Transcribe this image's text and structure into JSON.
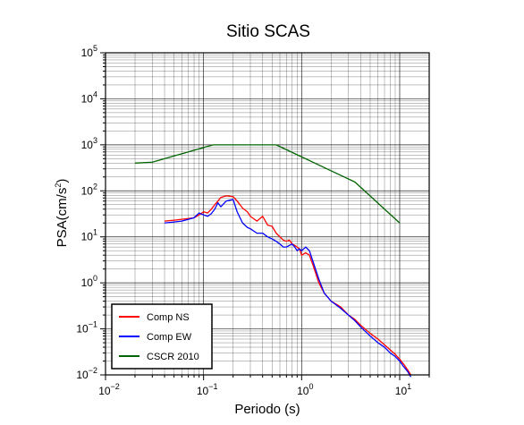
{
  "chart_data": {
    "type": "line",
    "title": "Sitio SCAS",
    "xlabel": "Periodo (s)",
    "ylabel_main": "PSA(cm/s",
    "ylabel_sup": "2",
    "ylabel_tail": ")",
    "xscale": "log",
    "yscale": "log",
    "xlim": [
      0.01,
      20
    ],
    "ylim": [
      0.01,
      100000
    ],
    "grid": true,
    "legend_position": "bottom-left",
    "x_ticks": [
      {
        "base": "10",
        "exp": "−2"
      },
      {
        "base": "10",
        "exp": "−1"
      },
      {
        "base": "10",
        "exp": "0"
      },
      {
        "base": "10",
        "exp": "1"
      }
    ],
    "y_ticks": [
      {
        "base": "10",
        "exp": "−2"
      },
      {
        "base": "10",
        "exp": "−1"
      },
      {
        "base": "10",
        "exp": "0"
      },
      {
        "base": "10",
        "exp": "1"
      },
      {
        "base": "10",
        "exp": "2"
      },
      {
        "base": "10",
        "exp": "3"
      },
      {
        "base": "10",
        "exp": "4"
      },
      {
        "base": "10",
        "exp": "5"
      }
    ],
    "series": [
      {
        "name": "Comp NS",
        "color": "#ff0000",
        "x": [
          0.04,
          0.05,
          0.06,
          0.07,
          0.08,
          0.09,
          0.1,
          0.11,
          0.12,
          0.13,
          0.14,
          0.15,
          0.17,
          0.2,
          0.22,
          0.25,
          0.28,
          0.3,
          0.35,
          0.4,
          0.45,
          0.5,
          0.55,
          0.6,
          0.65,
          0.7,
          0.75,
          0.8,
          0.85,
          0.9,
          0.95,
          1.0,
          1.1,
          1.2,
          1.3,
          1.5,
          1.7,
          2.0,
          2.5,
          3.0,
          3.5,
          4.0,
          5.0,
          6.0,
          7.0,
          8.0,
          9.0,
          10.0,
          11.0,
          12.0,
          13.0
        ],
        "y": [
          22,
          23,
          24,
          25,
          26,
          30,
          35,
          33,
          40,
          50,
          60,
          72,
          78,
          75,
          60,
          42,
          35,
          28,
          22,
          28,
          18,
          17,
          12,
          10,
          8.5,
          8,
          8.5,
          7,
          6.5,
          6,
          5.5,
          4,
          4.5,
          4,
          2.5,
          1,
          0.6,
          0.4,
          0.3,
          0.2,
          0.16,
          0.12,
          0.08,
          0.06,
          0.045,
          0.035,
          0.028,
          0.022,
          0.017,
          0.013,
          0.01
        ]
      },
      {
        "name": "Comp EW",
        "color": "#0000ff",
        "x": [
          0.04,
          0.05,
          0.06,
          0.07,
          0.08,
          0.09,
          0.1,
          0.11,
          0.12,
          0.13,
          0.14,
          0.15,
          0.17,
          0.2,
          0.22,
          0.25,
          0.28,
          0.3,
          0.35,
          0.4,
          0.45,
          0.5,
          0.55,
          0.6,
          0.65,
          0.7,
          0.75,
          0.8,
          0.85,
          0.9,
          0.95,
          1.0,
          1.1,
          1.2,
          1.3,
          1.5,
          1.7,
          2.0,
          2.5,
          3.0,
          3.5,
          4.0,
          5.0,
          6.0,
          7.0,
          8.0,
          9.0,
          10.0,
          11.0,
          12.0,
          13.0
        ],
        "y": [
          20,
          21,
          22,
          24,
          26,
          33,
          30,
          28,
          32,
          40,
          55,
          45,
          60,
          65,
          35,
          20,
          16,
          15,
          12,
          12,
          10,
          9,
          8,
          7,
          6,
          6,
          6.5,
          7,
          6,
          5,
          5.5,
          5,
          6,
          5,
          3,
          1.2,
          0.6,
          0.4,
          0.28,
          0.2,
          0.15,
          0.11,
          0.07,
          0.05,
          0.04,
          0.03,
          0.025,
          0.02,
          0.015,
          0.012,
          0.009
        ]
      },
      {
        "name": "CSCR 2010",
        "color": "#006400",
        "x": [
          0.02,
          0.03,
          0.125,
          0.55,
          3.5,
          10.0
        ],
        "y": [
          400,
          420,
          1000,
          1000,
          155,
          20
        ]
      }
    ]
  }
}
